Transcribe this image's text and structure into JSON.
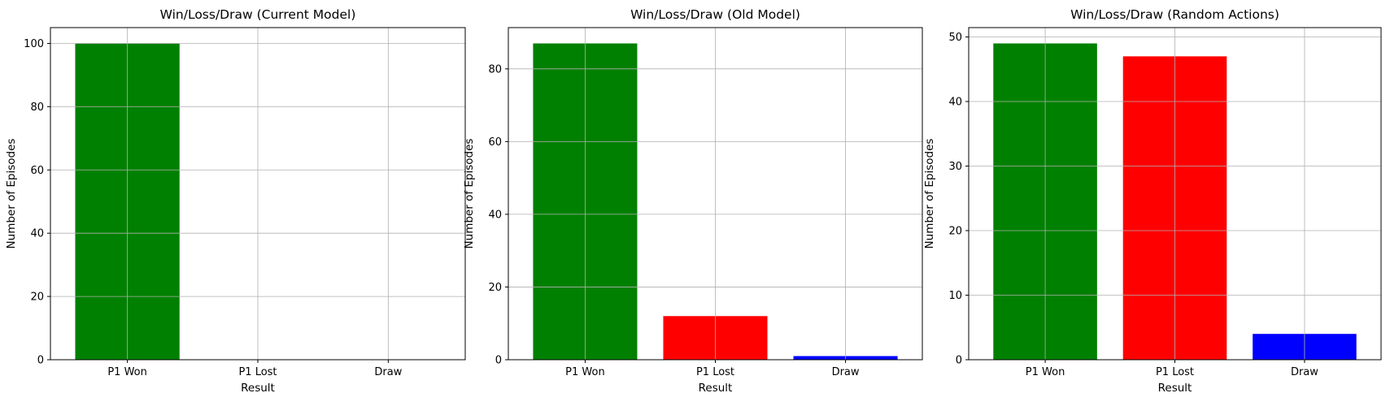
{
  "chart_data": [
    {
      "type": "bar",
      "title": "Win/Loss/Draw (Current Model)",
      "xlabel": "Result",
      "ylabel": "Number of Episodes",
      "categories": [
        "P1 Won",
        "P1 Lost",
        "Draw"
      ],
      "values": [
        100,
        0,
        0
      ],
      "colors": [
        "#008000",
        "#ff0000",
        "#0000ff"
      ],
      "ylim": [
        0,
        105
      ],
      "yticks": [
        0,
        20,
        40,
        60,
        80,
        100
      ],
      "grid": true
    },
    {
      "type": "bar",
      "title": "Win/Loss/Draw (Old Model)",
      "xlabel": "Result",
      "ylabel": "Number of Episodes",
      "categories": [
        "P1 Won",
        "P1 Lost",
        "Draw"
      ],
      "values": [
        87,
        12,
        1
      ],
      "colors": [
        "#008000",
        "#ff0000",
        "#0000ff"
      ],
      "ylim": [
        0,
        91.35
      ],
      "yticks": [
        0,
        20,
        40,
        60,
        80
      ],
      "grid": true
    },
    {
      "type": "bar",
      "title": "Win/Loss/Draw (Random Actions)",
      "xlabel": "Result",
      "ylabel": "Number of Episodes",
      "categories": [
        "P1 Won",
        "P1 Lost",
        "Draw"
      ],
      "values": [
        49,
        47,
        4
      ],
      "colors": [
        "#008000",
        "#ff0000",
        "#0000ff"
      ],
      "ylim": [
        0,
        51.45
      ],
      "yticks": [
        0,
        10,
        20,
        30,
        40,
        50
      ],
      "grid": true
    }
  ]
}
